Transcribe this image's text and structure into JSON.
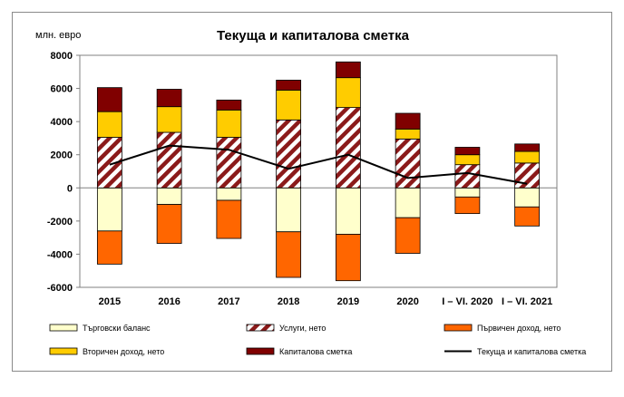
{
  "chart_data": {
    "type": "bar",
    "stacked": true,
    "title": "Текуща и капиталова сметка",
    "ylabel": "млн. евро",
    "ylim": [
      -6000,
      8000
    ],
    "yticks": [
      -6000,
      -4000,
      -2000,
      0,
      2000,
      4000,
      6000,
      8000
    ],
    "categories": [
      "2015",
      "2016",
      "2017",
      "2018",
      "2019",
      "2020",
      "I – VI. 2020",
      "I – VI. 2021"
    ],
    "series": [
      {
        "name": "Търговски баланс",
        "kind": "bar",
        "color": "#ffffcc",
        "values": [
          -2600,
          -1000,
          -750,
          -2650,
          -2800,
          -1800,
          -550,
          -1150
        ]
      },
      {
        "name": "Услуги, нето",
        "kind": "bar",
        "color": "#8b1a1a",
        "pattern": "diagonal-hatch",
        "values": [
          3050,
          3350,
          3050,
          4100,
          4850,
          2950,
          1400,
          1500
        ]
      },
      {
        "name": "Първичен доход, нето",
        "kind": "bar",
        "color": "#ff6600",
        "values": [
          -2000,
          -2350,
          -2300,
          -2750,
          -2800,
          -2150,
          -1000,
          -1150
        ]
      },
      {
        "name": "Вторичен доход, нето",
        "kind": "bar",
        "color": "#ffcc00",
        "values": [
          1550,
          1550,
          1650,
          1800,
          1800,
          600,
          600,
          700
        ]
      },
      {
        "name": "Капиталова сметка",
        "kind": "bar",
        "color": "#800000",
        "values": [
          1450,
          1050,
          600,
          600,
          950,
          950,
          450,
          450
        ]
      },
      {
        "name": "Текуща и капиталова сметка",
        "kind": "line",
        "color": "#000000",
        "values": [
          1400,
          2550,
          2300,
          1150,
          2000,
          600,
          900,
          250
        ]
      }
    ],
    "legend": {
      "position": "bottom",
      "columns": 3
    }
  }
}
